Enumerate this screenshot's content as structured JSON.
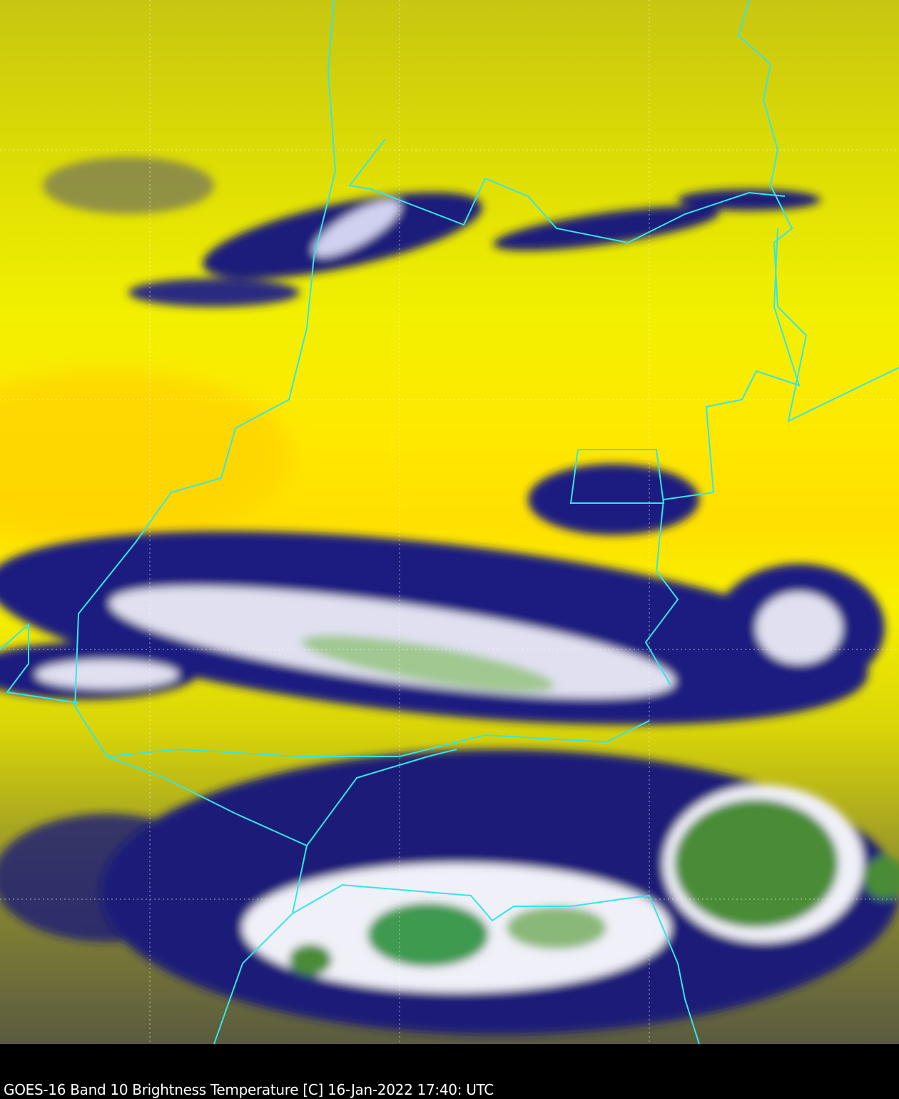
{
  "caption": "GOES-16 Band 10  Brightness Temperature [C] 16-Jan-2022 17:40: UTC",
  "colors": {
    "warm_clear": "#ffe600",
    "mid_level": "#c8c800",
    "cold_cloud": "#1a1a80",
    "very_cold": "#ffffff",
    "coldest": "#3c8c32",
    "borders": "#33e6e6",
    "background": "#000000"
  }
}
